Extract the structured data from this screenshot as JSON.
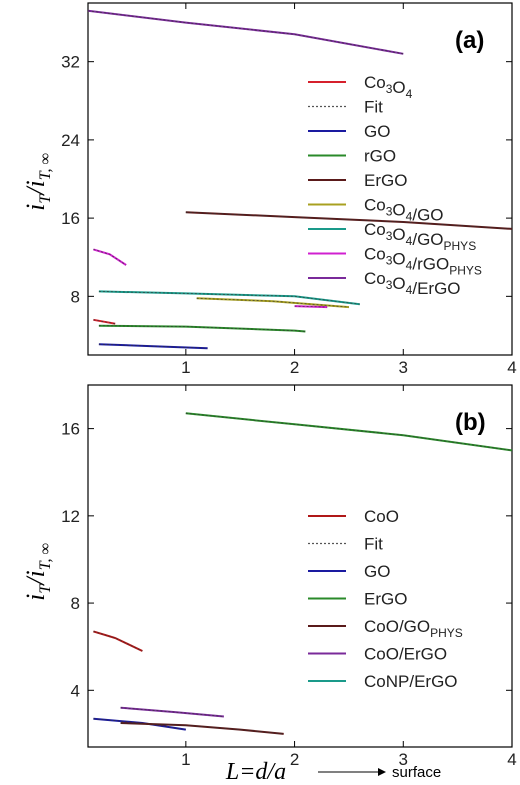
{
  "figure": {
    "xaxis_title": "L=d/a",
    "surface_label": "surface",
    "yaxis_title_main": "i",
    "yaxis_title_sub": "T",
    "yaxis_title_den": "i",
    "yaxis_title_den_sub": "T, ∞"
  },
  "chart_data": [
    {
      "type": "line",
      "panel_label": "(a)",
      "xlim": [
        0.1,
        4
      ],
      "ylim": [
        2,
        38
      ],
      "x_ticks": [
        "1",
        "2",
        "3",
        "4"
      ],
      "x_tick_values": [
        1,
        2,
        3,
        4
      ],
      "y_ticks": [
        "8",
        "16",
        "24",
        "32"
      ],
      "y_tick_values": [
        8,
        16,
        24,
        32
      ],
      "legend": [
        {
          "label": "Co",
          "sub1": "3",
          "mid": "O",
          "sub2": "4",
          "tail": "",
          "sub3": "",
          "color": "#d6202c",
          "dash": false
        },
        {
          "label": "Fit",
          "sub1": "",
          "mid": "",
          "sub2": "",
          "tail": "",
          "sub3": "",
          "color": "#555555",
          "dash": true
        },
        {
          "label": "GO",
          "sub1": "",
          "mid": "",
          "sub2": "",
          "tail": "",
          "sub3": "",
          "color": "#1a1aa0",
          "dash": false
        },
        {
          "label": "rGO",
          "sub1": "",
          "mid": "",
          "sub2": "",
          "tail": "",
          "sub3": "",
          "color": "#2a8a2a",
          "dash": false
        },
        {
          "label": "ErGO",
          "sub1": "",
          "mid": "",
          "sub2": "",
          "tail": "",
          "sub3": "",
          "color": "#5a1a1a",
          "dash": false
        },
        {
          "label": "Co",
          "sub1": "3",
          "mid": "O",
          "sub2": "4",
          "tail": "/GO",
          "sub3": "",
          "color": "#a8a020",
          "dash": false
        },
        {
          "label": "Co",
          "sub1": "3",
          "mid": "O",
          "sub2": "4",
          "tail": "/GO",
          "sub3": "PHYS",
          "color": "#1a9a8a",
          "dash": false
        },
        {
          "label": "Co",
          "sub1": "3",
          "mid": "O",
          "sub2": "4",
          "tail": "/rGO",
          "sub3": "PHYS",
          "color": "#d020d0",
          "dash": false
        },
        {
          "label": "Co",
          "sub1": "3",
          "mid": "O",
          "sub2": "4",
          "tail": "/ErGO",
          "sub3": "",
          "color": "#7a2a9a",
          "dash": false
        }
      ],
      "series": [
        {
          "name": "Co3O4/ErGO",
          "color": "#7a2a9a",
          "x": [
            0.1,
            1.0,
            2.0,
            3.0
          ],
          "y": [
            37.2,
            36.0,
            34.8,
            32.8
          ]
        },
        {
          "name": "ErGO",
          "color": "#5a1a1a",
          "x": [
            1.0,
            2.0,
            3.0,
            4.0
          ],
          "y": [
            16.6,
            16.1,
            15.6,
            14.9
          ]
        },
        {
          "name": "Co3O4/rGOPHYS",
          "color": "#d020d0",
          "x": [
            0.15,
            0.3,
            0.45
          ],
          "y": [
            12.8,
            12.3,
            11.2
          ]
        },
        {
          "name": "Co3O4/GOPHYS",
          "color": "#1a9a8a",
          "x": [
            0.2,
            1.0,
            2.0,
            2.6
          ],
          "y": [
            8.5,
            8.3,
            8.0,
            7.2
          ]
        },
        {
          "name": "Co3O4/GO",
          "color": "#a8a020",
          "x": [
            1.1,
            1.8,
            2.5
          ],
          "y": [
            7.8,
            7.5,
            6.9
          ]
        },
        {
          "name": "Co3O4/rGOPHYS tail",
          "color": "#d020d0",
          "x": [
            2.0,
            2.3
          ],
          "y": [
            7.0,
            6.9
          ]
        },
        {
          "name": "Co3O4",
          "color": "#d6202c",
          "x": [
            0.15,
            0.35
          ],
          "y": [
            5.6,
            5.2
          ]
        },
        {
          "name": "rGO",
          "color": "#2a8a2a",
          "x": [
            0.2,
            1.0,
            2.0,
            2.1
          ],
          "y": [
            5.0,
            4.9,
            4.5,
            4.4
          ]
        },
        {
          "name": "GO",
          "color": "#1a1aa0",
          "x": [
            0.2,
            0.7,
            1.2
          ],
          "y": [
            3.1,
            2.9,
            2.7
          ]
        }
      ]
    },
    {
      "type": "line",
      "panel_label": "(b)",
      "xlim": [
        0.1,
        4
      ],
      "ylim": [
        1.4,
        18
      ],
      "x_ticks": [
        "1",
        "2",
        "3",
        "4"
      ],
      "x_tick_values": [
        1,
        2,
        3,
        4
      ],
      "y_ticks": [
        "4",
        "8",
        "12",
        "16"
      ],
      "y_tick_values": [
        4,
        8,
        12,
        16
      ],
      "legend": [
        {
          "label": "CoO",
          "sub1": "",
          "mid": "",
          "sub2": "",
          "tail": "",
          "sub3": "",
          "color": "#b01818",
          "dash": false
        },
        {
          "label": "Fit",
          "sub1": "",
          "mid": "",
          "sub2": "",
          "tail": "",
          "sub3": "",
          "color": "#555555",
          "dash": true
        },
        {
          "label": "GO",
          "sub1": "",
          "mid": "",
          "sub2": "",
          "tail": "",
          "sub3": "",
          "color": "#1a1aa0",
          "dash": false
        },
        {
          "label": "ErGO",
          "sub1": "",
          "mid": "",
          "sub2": "",
          "tail": "",
          "sub3": "",
          "color": "#2a8a2a",
          "dash": false
        },
        {
          "label": "CoO/GO",
          "sub1": "",
          "mid": "",
          "sub2": "",
          "tail": "",
          "sub3": "PHYS",
          "color": "#5a1a1a",
          "dash": false
        },
        {
          "label": "CoO/ErGO",
          "sub1": "",
          "mid": "",
          "sub2": "",
          "tail": "",
          "sub3": "",
          "color": "#7a2a9a",
          "dash": false
        },
        {
          "label": "CoNP/ErGO",
          "sub1": "",
          "mid": "",
          "sub2": "",
          "tail": "",
          "sub3": "",
          "color": "#1a9a8a",
          "dash": false
        }
      ],
      "series": [
        {
          "name": "ErGO",
          "color": "#2a8a2a",
          "x": [
            1.0,
            2.0,
            3.0,
            4.0
          ],
          "y": [
            16.7,
            16.2,
            15.7,
            15.0
          ]
        },
        {
          "name": "CoO",
          "color": "#b01818",
          "x": [
            0.15,
            0.35,
            0.6
          ],
          "y": [
            6.7,
            6.4,
            5.8
          ]
        },
        {
          "name": "CoO/ErGO",
          "color": "#7a2a9a",
          "x": [
            0.4,
            0.9,
            1.35
          ],
          "y": [
            3.2,
            3.0,
            2.8
          ]
        },
        {
          "name": "GO",
          "color": "#1a1aa0",
          "x": [
            0.15,
            0.6,
            1.0
          ],
          "y": [
            2.7,
            2.5,
            2.2
          ]
        },
        {
          "name": "CoO/GOPHYS",
          "color": "#5a1a1a",
          "x": [
            0.4,
            1.0,
            1.5,
            1.9
          ],
          "y": [
            2.5,
            2.4,
            2.2,
            2.0
          ]
        }
      ]
    }
  ]
}
